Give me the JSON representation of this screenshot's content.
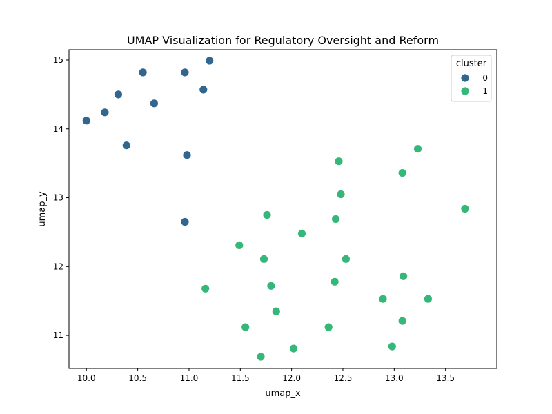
{
  "chart_data": {
    "type": "scatter",
    "title": "UMAP Visualization for Regulatory Oversight and Reform",
    "xlabel": "umap_x",
    "ylabel": "umap_y",
    "xlim": [
      9.83,
      14.0
    ],
    "ylim": [
      10.52,
      15.15
    ],
    "xticks": [
      "10.0",
      "10.5",
      "11.0",
      "11.5",
      "12.0",
      "12.5",
      "13.0",
      "13.5"
    ],
    "yticks": [
      "11",
      "12",
      "13",
      "14",
      "15"
    ],
    "grid": false,
    "legend": {
      "title": "cluster",
      "position": "top-right",
      "entries": [
        "0",
        "1"
      ]
    },
    "colors": {
      "0": "#31668e",
      "1": "#35b779"
    },
    "series": [
      {
        "name": "0",
        "points": [
          [
            11.2,
            14.99
          ],
          [
            10.55,
            14.82
          ],
          [
            10.96,
            14.82
          ],
          [
            11.14,
            14.57
          ],
          [
            10.31,
            14.5
          ],
          [
            10.66,
            14.37
          ],
          [
            10.18,
            14.24
          ],
          [
            10.0,
            14.12
          ],
          [
            10.39,
            13.76
          ],
          [
            10.98,
            13.62
          ],
          [
            10.96,
            12.65
          ]
        ]
      },
      {
        "name": "1",
        "points": [
          [
            13.23,
            13.71
          ],
          [
            12.46,
            13.53
          ],
          [
            13.08,
            13.36
          ],
          [
            12.48,
            13.05
          ],
          [
            13.69,
            12.84
          ],
          [
            11.76,
            12.75
          ],
          [
            12.43,
            12.69
          ],
          [
            12.1,
            12.48
          ],
          [
            11.49,
            12.31
          ],
          [
            11.73,
            12.11
          ],
          [
            12.53,
            12.11
          ],
          [
            13.09,
            11.86
          ],
          [
            12.42,
            11.78
          ],
          [
            11.8,
            11.72
          ],
          [
            11.16,
            11.68
          ],
          [
            12.89,
            11.53
          ],
          [
            13.33,
            11.53
          ],
          [
            11.85,
            11.35
          ],
          [
            13.08,
            11.21
          ],
          [
            11.55,
            11.12
          ],
          [
            12.36,
            11.12
          ],
          [
            12.98,
            10.84
          ],
          [
            12.02,
            10.81
          ],
          [
            11.7,
            10.69
          ]
        ]
      }
    ]
  }
}
